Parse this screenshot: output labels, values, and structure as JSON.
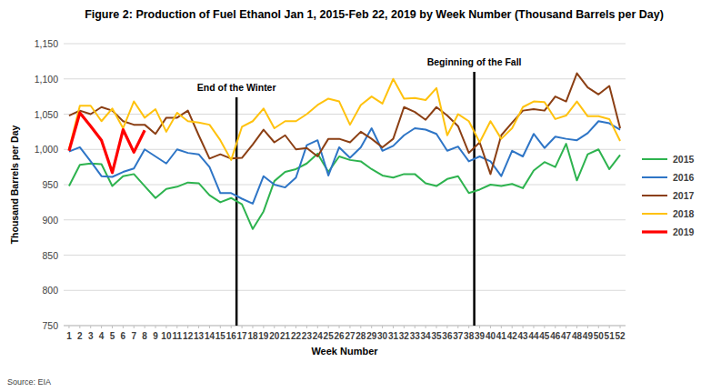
{
  "chart_data": {
    "type": "line",
    "title": "Figure 2: Production of Fuel Ethanol Jan 1, 2015-Feb 22, 2019 by Week Number (Thousand Barrels per Day)",
    "x_label": "Week Number",
    "y_label": "Thousand Barrels per Day",
    "source": "Source: EIA",
    "x": [
      1,
      2,
      3,
      4,
      5,
      6,
      7,
      8,
      9,
      10,
      11,
      12,
      13,
      14,
      15,
      16,
      17,
      18,
      19,
      20,
      21,
      22,
      23,
      24,
      25,
      26,
      27,
      28,
      29,
      30,
      31,
      32,
      33,
      34,
      35,
      36,
      37,
      38,
      39,
      40,
      41,
      42,
      43,
      44,
      45,
      46,
      47,
      48,
      49,
      50,
      51,
      52
    ],
    "xlim": [
      0.5,
      52.5
    ],
    "xticks": [
      1,
      2,
      3,
      4,
      5,
      6,
      7,
      8,
      9,
      10,
      11,
      12,
      13,
      14,
      15,
      16,
      17,
      18,
      19,
      20,
      21,
      22,
      23,
      24,
      25,
      26,
      27,
      28,
      29,
      30,
      31,
      32,
      33,
      34,
      35,
      36,
      37,
      38,
      39,
      40,
      41,
      42,
      43,
      44,
      45,
      46,
      47,
      48,
      49,
      50,
      51,
      52
    ],
    "ylim": [
      750,
      1150
    ],
    "yticks": [
      750,
      800,
      850,
      900,
      950,
      {
        "value": 1000,
        "label": "1,000"
      },
      {
        "value": 1050,
        "label": "1,050"
      },
      {
        "value": 1100,
        "label": "1,100"
      },
      {
        "value": 1150,
        "label": "1,150"
      }
    ],
    "grid": true,
    "legend": "right",
    "annotations": [
      {
        "text": "End of the Winter",
        "x": 16.5
      },
      {
        "text": "Beginning of the Fall",
        "x": 38.5
      }
    ],
    "series": [
      {
        "name": "2015",
        "color": "#2eb34f",
        "values": [
          948,
          978,
          980,
          979,
          948,
          962,
          965,
          948,
          931,
          944,
          947,
          953,
          952,
          935,
          925,
          931,
          922,
          887,
          912,
          955,
          968,
          972,
          980,
          994,
          968,
          990,
          985,
          983,
          972,
          963,
          960,
          965,
          965,
          952,
          948,
          958,
          962,
          938,
          943,
          950,
          948,
          951,
          945,
          970,
          982,
          975,
          1008,
          956,
          993,
          1000,
          972,
          992
        ]
      },
      {
        "name": "2016",
        "color": "#2e75c6",
        "values": [
          997,
          1003,
          983,
          962,
          961,
          968,
          973,
          1000,
          990,
          980,
          1000,
          995,
          993,
          975,
          938,
          938,
          930,
          923,
          962,
          950,
          946,
          960,
          1006,
          1013,
          963,
          1003,
          988,
          1003,
          1030,
          998,
          1005,
          1020,
          1030,
          1028,
          1022,
          998,
          1004,
          983,
          990,
          983,
          962,
          998,
          990,
          1022,
          1002,
          1018,
          1015,
          1013,
          1023,
          1040,
          1037,
          1028
        ]
      },
      {
        "name": "2017",
        "color": "#8b3f14",
        "values": [
          1048,
          1055,
          1050,
          1060,
          1055,
          1040,
          1035,
          1035,
          1022,
          1045,
          1045,
          1055,
          1020,
          987,
          993,
          987,
          988,
          1007,
          1028,
          1010,
          1020,
          1000,
          1002,
          990,
          1015,
          1015,
          1010,
          1025,
          1015,
          1003,
          1015,
          1060,
          1053,
          1042,
          1060,
          1048,
          1033,
          995,
          1010,
          965,
          1020,
          1038,
          1055,
          1057,
          1055,
          1075,
          1068,
          1108,
          1088,
          1078,
          1090,
          1030
        ]
      },
      {
        "name": "2018",
        "color": "#ffc20e",
        "values": [
          1000,
          1062,
          1062,
          1040,
          1058,
          1030,
          1068,
          1045,
          1057,
          1025,
          1052,
          1040,
          1038,
          1035,
          1013,
          985,
          1032,
          1040,
          1058,
          1030,
          1040,
          1040,
          1050,
          1063,
          1072,
          1068,
          1035,
          1063,
          1075,
          1065,
          1100,
          1072,
          1073,
          1070,
          1087,
          1020,
          1050,
          1040,
          1010,
          1040,
          1015,
          1030,
          1060,
          1068,
          1067,
          1043,
          1048,
          1068,
          1047,
          1047,
          1043,
          1012
        ]
      },
      {
        "name": "2019",
        "color": "#ff0000",
        "values": [
          998,
          1052,
          1033,
          1013,
          967,
          1028,
          996,
          1027,
          null,
          null,
          null,
          null,
          null,
          null,
          null,
          null,
          null,
          null,
          null,
          null,
          null,
          null,
          null,
          null,
          null,
          null,
          null,
          null,
          null,
          null,
          null,
          null,
          null,
          null,
          null,
          null,
          null,
          null,
          null,
          null,
          null,
          null,
          null,
          null,
          null,
          null,
          null,
          null,
          null,
          null,
          null,
          null
        ]
      }
    ]
  }
}
